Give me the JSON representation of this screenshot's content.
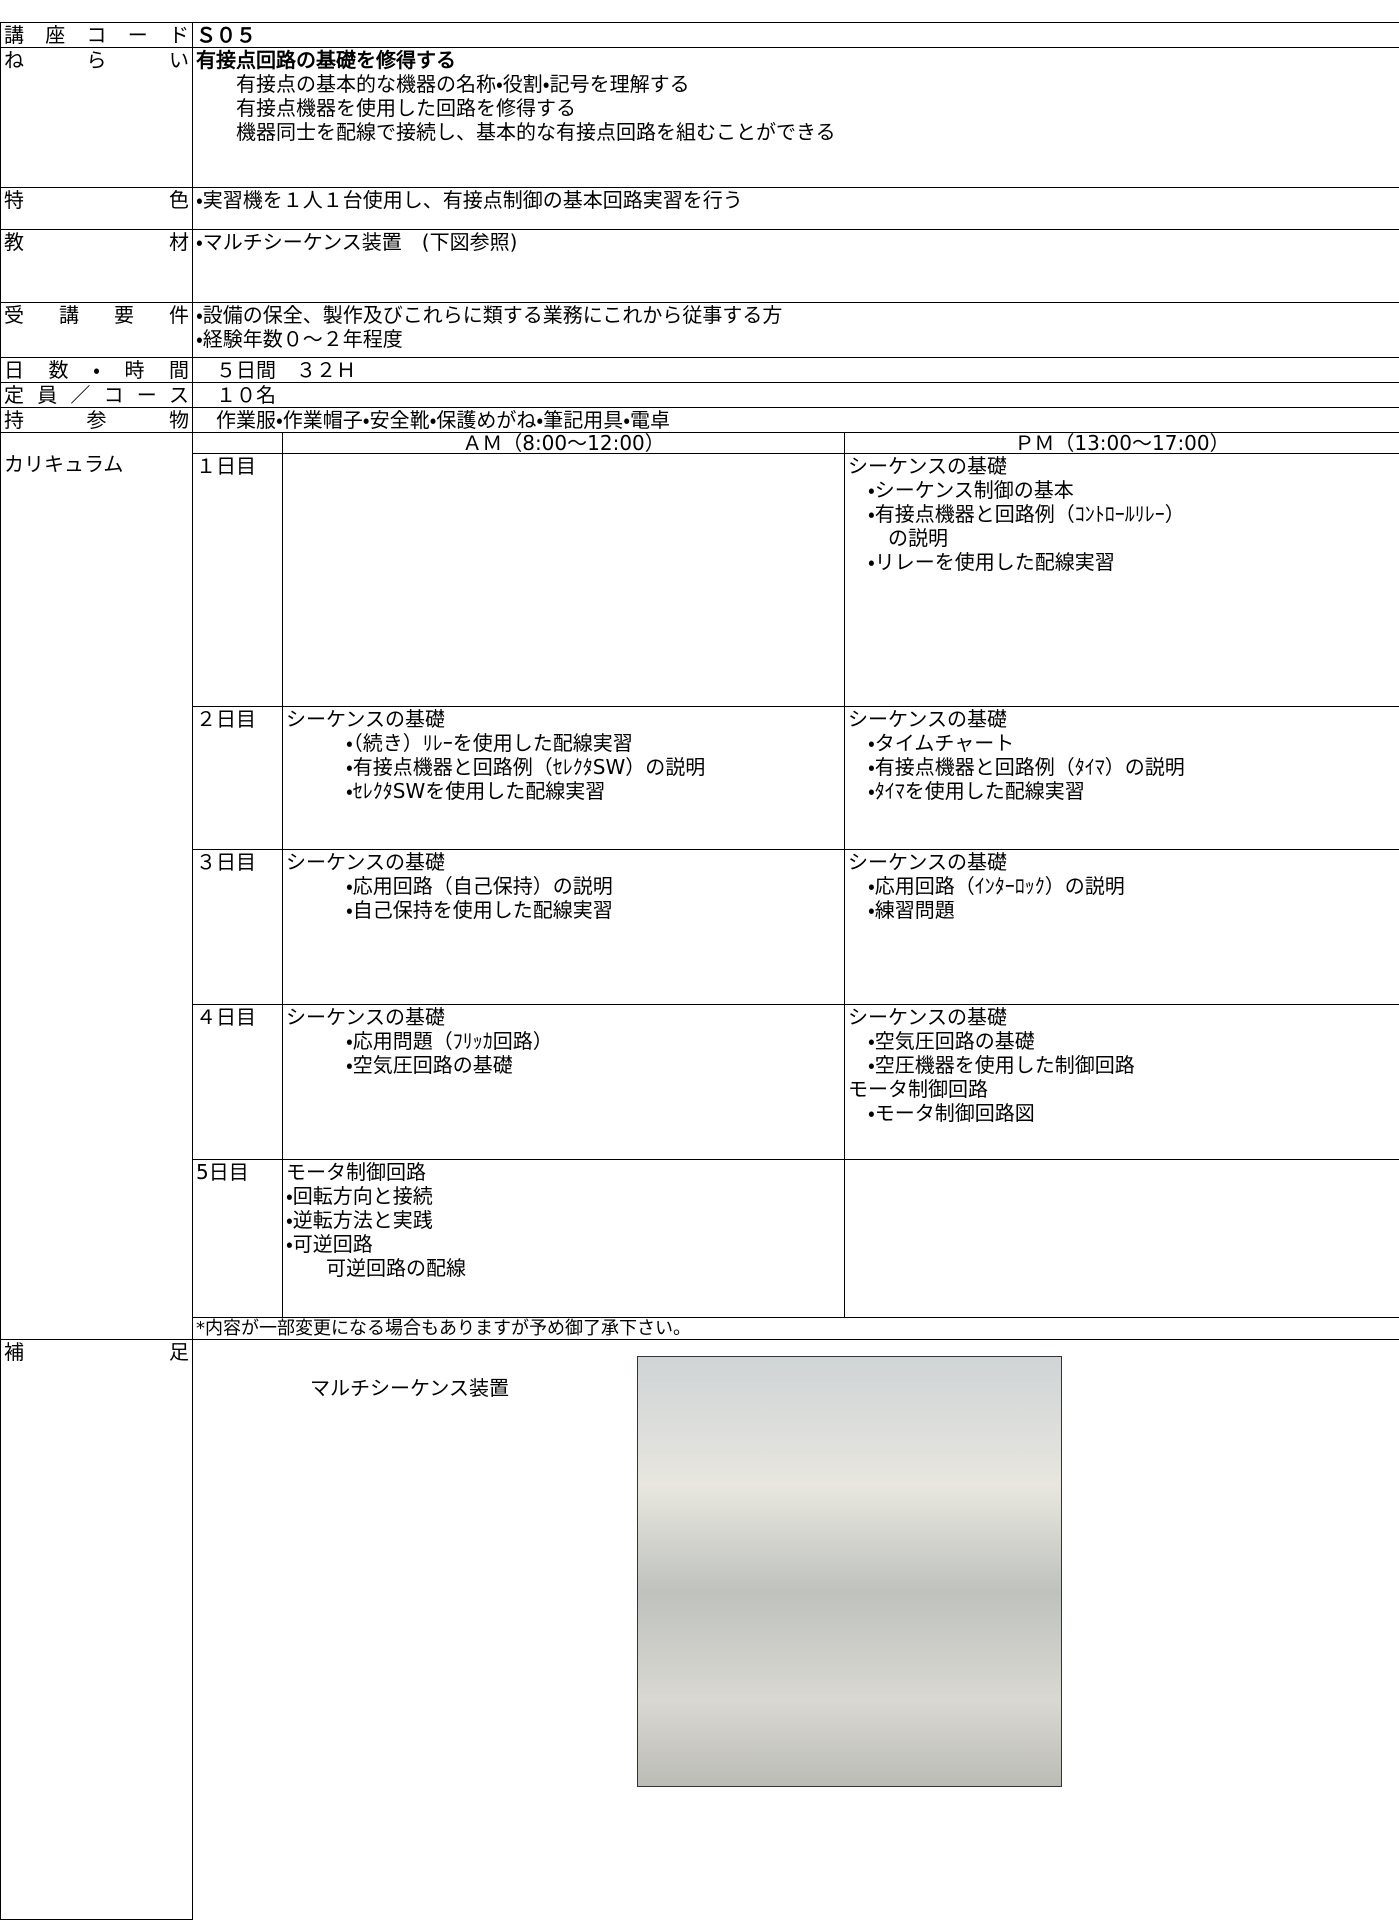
{
  "info_rows": [
    {
      "label": "講座コード",
      "lines": [
        "Ｓ０５"
      ]
    },
    {
      "label": "ねらい",
      "lines": [
        "有接点回路の基礎を修得する",
        "　　有接点の基本的な機器の名称・役割・記号を理解する",
        "　　有接点機器を使用した回路を修得する",
        "　　機器同士を配線で接続し、基本的な有接点回路を組むことができる"
      ]
    },
    {
      "label": "特色",
      "lines": [
        "・実習機を１人１台使用し、有接点制御の基本回路実習を行う"
      ]
    },
    {
      "label": "教材",
      "lines": [
        "・マルチシーケンス装置　(下図参照)"
      ]
    },
    {
      "label": "受講要件",
      "lines": [
        "・設備の保全、製作及びこれらに類する業務にこれから従事する方",
        "・経験年数０～２年程度"
      ]
    },
    {
      "label": "日数・時間",
      "lines": [
        "　５日間　３２Ｈ"
      ]
    },
    {
      "label": "定員／コース",
      "lines": [
        "　１０名"
      ]
    },
    {
      "label": "持参物",
      "lines": [
        "　作業服・作業帽子・安全靴・保護めがね・筆記用具・電卓"
      ]
    }
  ],
  "curriculum": {
    "label": "カリキュラム",
    "am_header": "ＡＭ（8:00～12:00）",
    "pm_header": "ＰＭ（13:00～17:00）",
    "days": [
      {
        "day": "１日目",
        "am": [],
        "pm": [
          "シーケンスの基礎",
          "　・シーケンス制御の基本",
          "　・有接点機器と回路例（ｺﾝﾄﾛｰﾙﾘﾚｰ）",
          "　　の説明",
          "　・リレーを使用した配線実習"
        ]
      },
      {
        "day": "２日目",
        "am": [
          "シーケンスの基礎",
          "　　　・（続き）ﾘﾚｰを使用した配線実習",
          "　　　・有接点機器と回路例（ｾﾚｸﾀSW）の説明",
          "　　　・ｾﾚｸﾀSWを使用した配線実習"
        ],
        "pm": [
          "シーケンスの基礎",
          "　・タイムチャート",
          "　・有接点機器と回路例（ﾀｲﾏ）の説明",
          "　・ﾀｲﾏを使用した配線実習"
        ]
      },
      {
        "day": "３日目",
        "am": [
          "シーケンスの基礎",
          "　　　・応用回路（自己保持）の説明",
          "　　　・自己保持を使用した配線実習"
        ],
        "pm": [
          "シーケンスの基礎",
          "　・応用回路（ｲﾝﾀｰﾛｯｸ）の説明",
          "　・練習問題"
        ]
      },
      {
        "day": "４日目",
        "am": [
          "シーケンスの基礎",
          "　　　・応用問題（ﾌﾘｯｶ回路）",
          "　　　・空気圧回路の基礎"
        ],
        "pm": [
          "シーケンスの基礎",
          "　・空気圧回路の基礎",
          "　・空圧機器を使用した制御回路",
          "モータ制御回路",
          "　・モータ制御回路図"
        ]
      },
      {
        "day": "5日目",
        "am": [
          "モータ制御回路",
          "・回転方向と接続",
          "・逆転方法と実践",
          "・可逆回路",
          "　　可逆回路の配線"
        ],
        "pm": []
      }
    ],
    "note": "*内容が一部変更になる場合もありますが予め御了承下さい。"
  },
  "supplement": {
    "label": "補足",
    "caption": "マルチシーケンス装置"
  }
}
